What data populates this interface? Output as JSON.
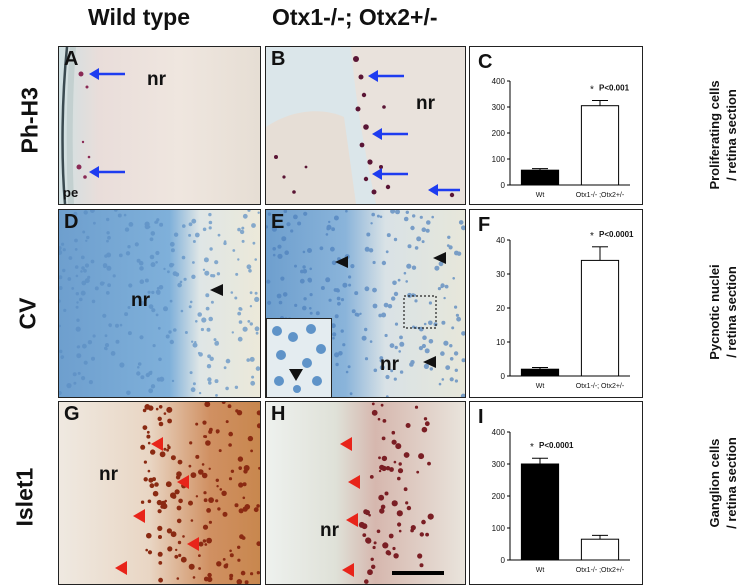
{
  "column_headers": [
    "Wild type",
    "Otx1-/-; Otx2+/-"
  ],
  "row_headers": [
    "Ph-H3",
    "CV",
    "Islet1"
  ],
  "right_labels": [
    [
      "Proliferating cells",
      "/ retina section"
    ],
    [
      "Pycnotic nuclei",
      "/ retina section"
    ],
    [
      "Ganglion cells",
      "/ retina section"
    ]
  ],
  "panels": {
    "A": {
      "letter": "A",
      "nr": "nr",
      "pe": "pe"
    },
    "B": {
      "letter": "B",
      "nr": "nr"
    },
    "D": {
      "letter": "D",
      "nr": "nr"
    },
    "E": {
      "letter": "E",
      "nr": "nr"
    },
    "G": {
      "letter": "G",
      "nr": "nr"
    },
    "H": {
      "letter": "H",
      "nr": "nr"
    }
  },
  "colors": {
    "arrow_blue": "#1e3cf0",
    "arrow_black": "#111111",
    "arrow_red": "#e8241a",
    "bar_black": "#000000",
    "bar_white": "#ffffff"
  },
  "chart_data": [
    {
      "panel": "C",
      "type": "bar",
      "categories": [
        "Wt",
        "Otx1-/- ;Otx2+/-"
      ],
      "values": [
        57,
        305
      ],
      "errors": [
        6,
        20
      ],
      "fills": [
        "#000000",
        "#ffffff"
      ],
      "ylim": [
        0,
        400
      ],
      "yticks": [
        0,
        100,
        200,
        300,
        400
      ],
      "annotation": {
        "star": "*",
        "text": "P<0.001",
        "category_index": 1
      }
    },
    {
      "panel": "F",
      "type": "bar",
      "categories": [
        "Wt",
        "Otx1-/-; Otx2+/-"
      ],
      "values": [
        2,
        34
      ],
      "errors": [
        0.5,
        4
      ],
      "fills": [
        "#000000",
        "#ffffff"
      ],
      "ylim": [
        0,
        40
      ],
      "yticks": [
        0,
        10,
        20,
        30,
        40
      ],
      "annotation": {
        "star": "*",
        "text": "P<0.0001",
        "category_index": 1
      }
    },
    {
      "panel": "I",
      "type": "bar",
      "categories": [
        "Wt",
        "Otx1-/- ;Otx2+/-"
      ],
      "values": [
        300,
        65
      ],
      "errors": [
        18,
        12
      ],
      "fills": [
        "#000000",
        "#ffffff"
      ],
      "ylim": [
        0,
        400
      ],
      "yticks": [
        0,
        100,
        200,
        300,
        400
      ],
      "annotation": {
        "star": "*",
        "text": "P<0.0001",
        "category_index": 0
      }
    }
  ]
}
